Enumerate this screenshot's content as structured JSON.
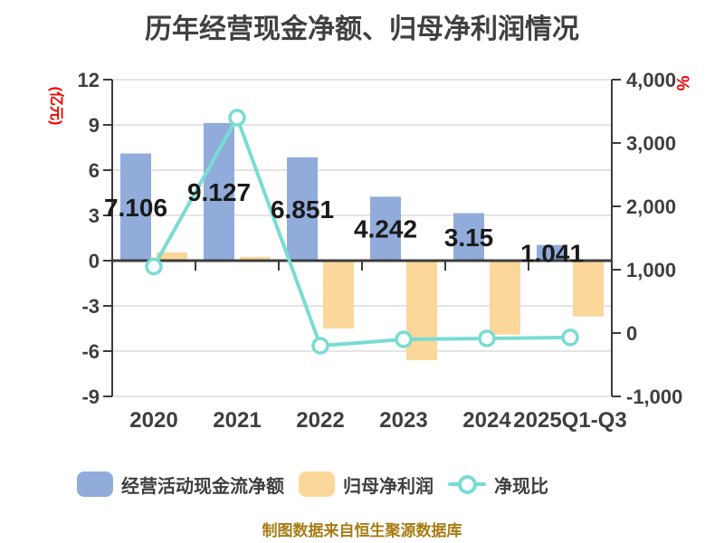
{
  "title": "历年经营现金净额、归母净利润情况",
  "source_note": "制图数据来自恒生聚源数据库",
  "colors": {
    "bar_blue": "#91ACDB",
    "bar_orange": "#FBD79A",
    "line_teal": "#79DCD4",
    "marker_fill": "#FFFFFF",
    "axis": "#3C3C3C",
    "grid": "#E4E4E4",
    "tick_text": "#3F3F3F",
    "data_label": "#1A1A1A",
    "unit_label_red": "#EE0000",
    "source_text": "#A87C14"
  },
  "chart_data": {
    "type": "bar",
    "title": "历年经营现金净额、归母净利润情况",
    "categories": [
      "2020",
      "2021",
      "2022",
      "2023",
      "2024",
      "2025Q1-Q3"
    ],
    "series": [
      {
        "name": "经营活动现金流净额",
        "type": "bar",
        "axis": "left",
        "values": [
          7.106,
          9.127,
          6.851,
          4.242,
          3.15,
          1.041
        ],
        "labels": [
          "7.106",
          "9.127",
          "6.851",
          "4.242",
          "3.15",
          "1.041"
        ]
      },
      {
        "name": "归母净利润",
        "type": "bar",
        "axis": "left",
        "values": [
          0.55,
          0.25,
          -4.5,
          -6.6,
          -4.9,
          -3.7
        ]
      },
      {
        "name": "净现比",
        "type": "line",
        "axis": "right",
        "values": [
          1050,
          3400,
          -200,
          -100,
          -85,
          -70
        ]
      }
    ],
    "left_axis": {
      "label": "(亿元)",
      "min": -9,
      "max": 12,
      "ticks": [
        "12",
        "9",
        "6",
        "3",
        "0",
        "-3",
        "-6",
        "-9"
      ]
    },
    "right_axis": {
      "label": "%",
      "min": -1000,
      "max": 4000,
      "ticks": [
        "4,000",
        "3,000",
        "2,000",
        "1,000",
        "0",
        "-1,000"
      ]
    },
    "legend_position": "bottom",
    "grid": true
  }
}
